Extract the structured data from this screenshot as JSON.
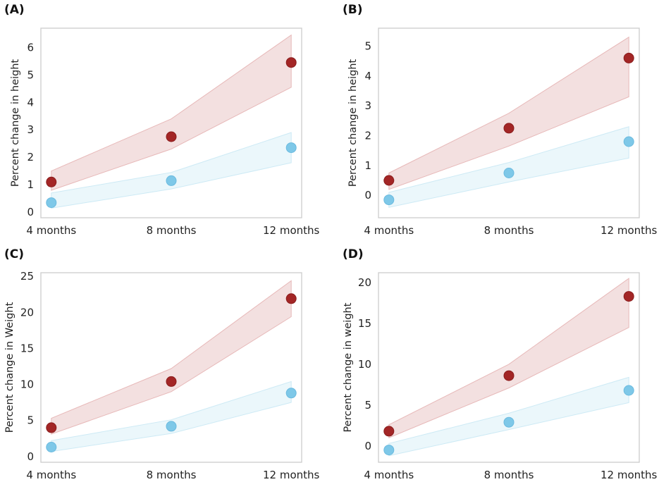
{
  "colors": {
    "red_point": "#a32626",
    "red_band": "#efd6d6",
    "red_band_edge": "#e7b8b8",
    "blue_point": "#7ec8e8",
    "blue_band": "#e9f6fb",
    "blue_band_edge": "#cdeaf5"
  },
  "chart_data": [
    {
      "type": "scatter",
      "panel_label": "(A)",
      "ylabel": "Percent change in height",
      "categories": [
        "4 months",
        "8 months",
        "12 months"
      ],
      "ylim": [
        -0.2,
        6.7
      ],
      "yticks": [
        "0",
        "1",
        "2",
        "3",
        "4",
        "5",
        "6"
      ],
      "series": [
        {
          "name": "red",
          "values": [
            1.1,
            2.75,
            5.45
          ],
          "lower": [
            0.8,
            2.3,
            4.55
          ],
          "upper": [
            1.5,
            3.4,
            6.45
          ]
        },
        {
          "name": "blue",
          "values": [
            0.35,
            1.15,
            2.35
          ],
          "lower": [
            0.15,
            0.85,
            1.8
          ],
          "upper": [
            0.7,
            1.45,
            2.9
          ]
        }
      ]
    },
    {
      "type": "scatter",
      "panel_label": "(B)",
      "ylabel": "Percent change in height",
      "categories": [
        "4 months",
        "8 months",
        "12 months"
      ],
      "ylim": [
        -0.75,
        5.6
      ],
      "yticks": [
        "0",
        "1",
        "2",
        "3",
        "4",
        "5"
      ],
      "series": [
        {
          "name": "red",
          "values": [
            0.5,
            2.25,
            4.6
          ],
          "lower": [
            0.2,
            1.65,
            3.3
          ],
          "upper": [
            0.75,
            2.75,
            5.3
          ]
        },
        {
          "name": "blue",
          "values": [
            -0.15,
            0.75,
            1.8
          ],
          "lower": [
            -0.4,
            0.45,
            1.25
          ],
          "upper": [
            0.1,
            1.1,
            2.3
          ]
        }
      ]
    },
    {
      "type": "scatter",
      "panel_label": "(C)",
      "ylabel": "Percent change in Weight",
      "categories": [
        "4 months",
        "8 months",
        "12 months"
      ],
      "ylim": [
        -0.8,
        25.5
      ],
      "yticks": [
        "0",
        "5",
        "10",
        "15",
        "20",
        "25"
      ],
      "series": [
        {
          "name": "red",
          "values": [
            4.0,
            10.4,
            21.9
          ],
          "lower": [
            3.1,
            9.0,
            19.4
          ],
          "upper": [
            5.3,
            12.2,
            24.4
          ]
        },
        {
          "name": "blue",
          "values": [
            1.3,
            4.2,
            8.8
          ],
          "lower": [
            0.7,
            3.2,
            7.5
          ],
          "upper": [
            2.2,
            5.1,
            10.4
          ]
        }
      ]
    },
    {
      "type": "scatter",
      "panel_label": "(D)",
      "ylabel": "Percent change in weight",
      "categories": [
        "4 months",
        "8 months",
        "12 months"
      ],
      "ylim": [
        -2.0,
        21.2
      ],
      "yticks": [
        "0",
        "5",
        "10",
        "15",
        "20"
      ],
      "series": [
        {
          "name": "red",
          "values": [
            1.8,
            8.6,
            18.3
          ],
          "lower": [
            1.0,
            7.1,
            14.5
          ],
          "upper": [
            2.6,
            10.0,
            20.5
          ]
        },
        {
          "name": "blue",
          "values": [
            -0.5,
            2.9,
            6.8
          ],
          "lower": [
            -1.2,
            2.0,
            5.3
          ],
          "upper": [
            0.3,
            4.0,
            8.4
          ]
        }
      ]
    }
  ]
}
